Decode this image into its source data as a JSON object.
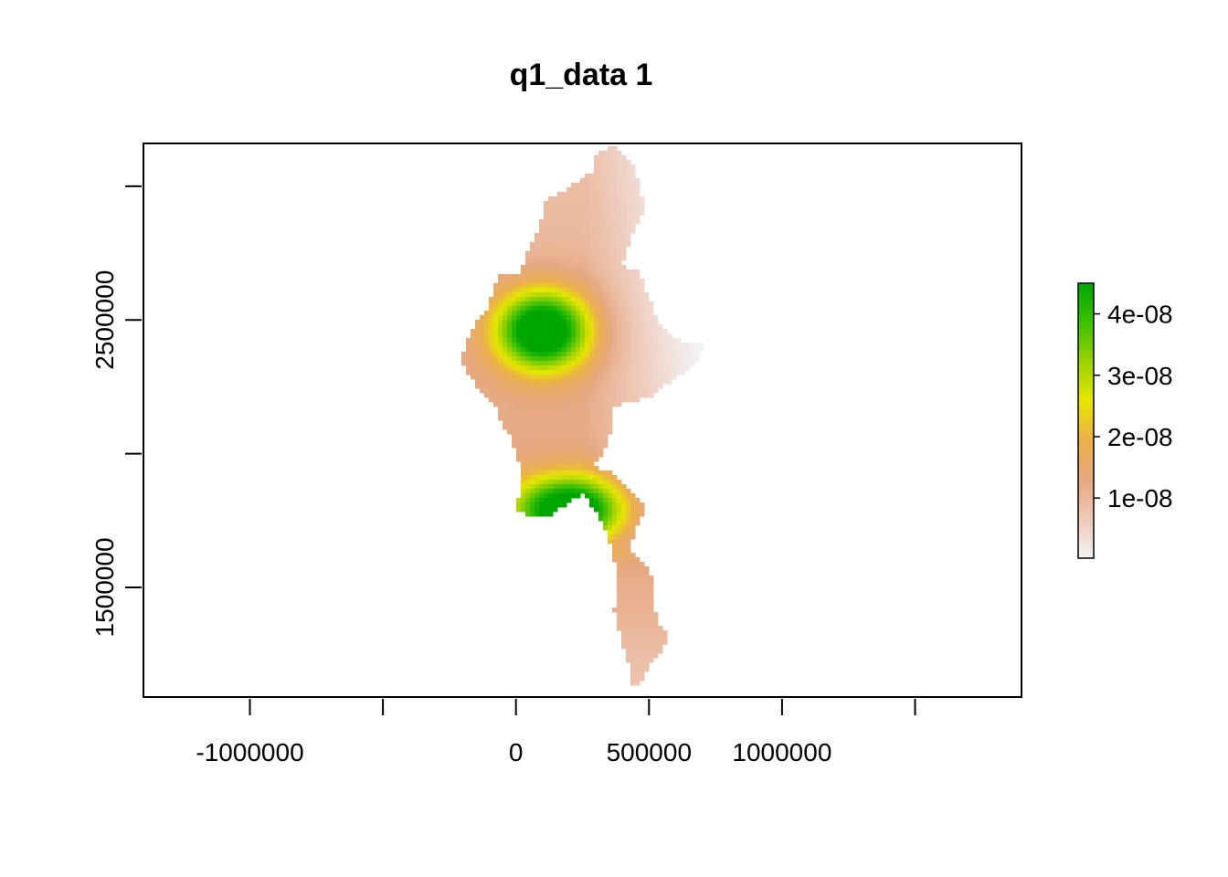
{
  "chart_data": {
    "type": "heatmap",
    "title": "q1_data 1",
    "xlabel": "",
    "ylabel": "",
    "x_ticks": [
      -1000000,
      -500000,
      0,
      500000,
      1000000,
      1500000
    ],
    "x_tick_labels": [
      "-1000000",
      "",
      "0",
      "500000",
      "1000000",
      ""
    ],
    "y_ticks": [
      1500000,
      2000000,
      2500000,
      3000000
    ],
    "y_tick_labels": [
      "1500000",
      "",
      "2500000",
      ""
    ],
    "xlim": [
      -1400000,
      1900000
    ],
    "ylim": [
      1090000,
      3160000
    ],
    "legend": {
      "position": "right",
      "range": [
        2e-10,
        4.5e-08
      ],
      "ticks": [
        1e-08,
        2e-08,
        3e-08,
        4e-08
      ],
      "tick_labels": [
        "1e-08",
        "2e-08",
        "3e-08",
        "4e-08"
      ],
      "colors": [
        "#F2F2F2",
        "#EEC8B8",
        "#E6A880",
        "#EBB04A",
        "#E6E600",
        "#9BD200",
        "#3DC000",
        "#00A600"
      ]
    },
    "hotspots": [
      {
        "x": 100000,
        "y": 2460000,
        "peak": 4.5e-08
      },
      {
        "x": 200000,
        "y": 1790000,
        "peak": 4.2e-08
      }
    ]
  }
}
